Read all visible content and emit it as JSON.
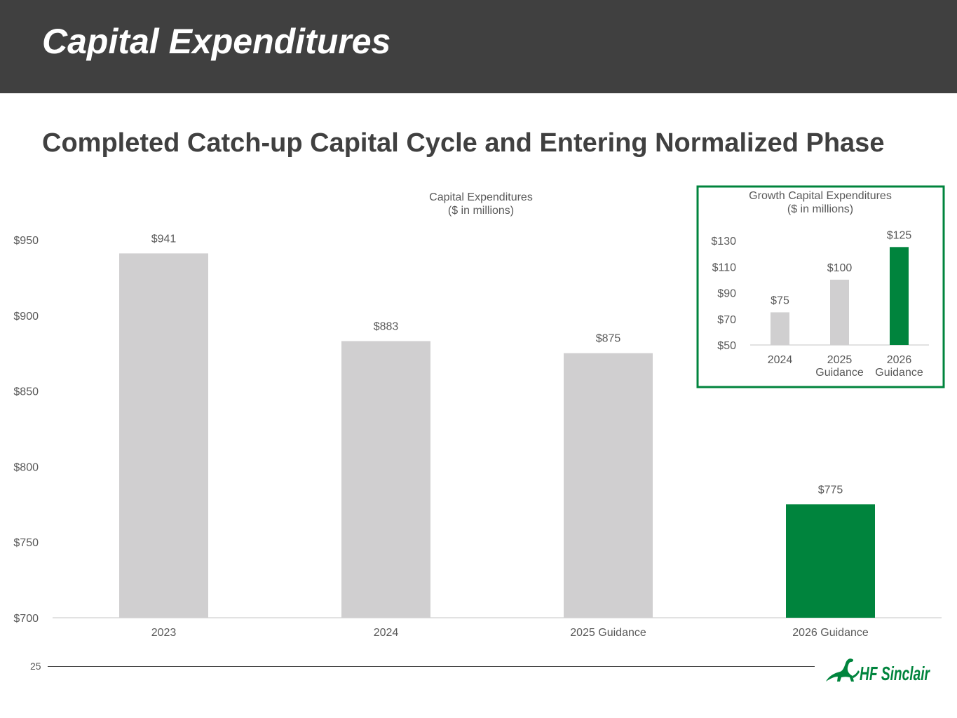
{
  "header": {
    "title": "Capital Expenditures"
  },
  "subtitle": "Completed Catch-up Capital Cycle and Entering Normalized Phase",
  "footer": {
    "page_number": "25",
    "logo_text": "HF Sinclair"
  },
  "colors": {
    "header_bg": "#404040",
    "gray_bar": "#d0cfd0",
    "green_bar": "#00843d",
    "inset_border": "#00843d",
    "text": "#595959"
  },
  "chart_data": [
    {
      "type": "bar",
      "title": "Capital Expenditures",
      "subtitle": "($ in millions)",
      "categories": [
        "2023",
        "2024",
        "2025 Guidance",
        "2026 Guidance"
      ],
      "values": [
        941,
        883,
        875,
        775
      ],
      "value_labels": [
        "$941",
        "$883",
        "$875",
        "$775"
      ],
      "bar_colors": [
        "#d0cfd0",
        "#d0cfd0",
        "#d0cfd0",
        "#00843d"
      ],
      "ylim": [
        700,
        950
      ],
      "yticks": [
        700,
        750,
        800,
        850,
        900,
        950
      ],
      "ytick_labels": [
        "$700",
        "$750",
        "$800",
        "$850",
        "$900",
        "$950"
      ],
      "xlabel": "",
      "ylabel": "",
      "grid": false,
      "legend": false
    },
    {
      "type": "bar",
      "title": "Growth Capital Expenditures",
      "subtitle": "($ in millions)",
      "categories": [
        "2024",
        "2025\nGuidance",
        "2026\nGuidance"
      ],
      "values": [
        75,
        100,
        125
      ],
      "value_labels": [
        "$75",
        "$100",
        "$125"
      ],
      "bar_colors": [
        "#d0cfd0",
        "#d0cfd0",
        "#00843d"
      ],
      "ylim": [
        50,
        130
      ],
      "yticks": [
        50,
        70,
        90,
        110,
        130
      ],
      "ytick_labels": [
        "$50",
        "$70",
        "$90",
        "$110",
        "$130"
      ],
      "xlabel": "",
      "ylabel": "",
      "grid": false,
      "legend": false
    }
  ]
}
